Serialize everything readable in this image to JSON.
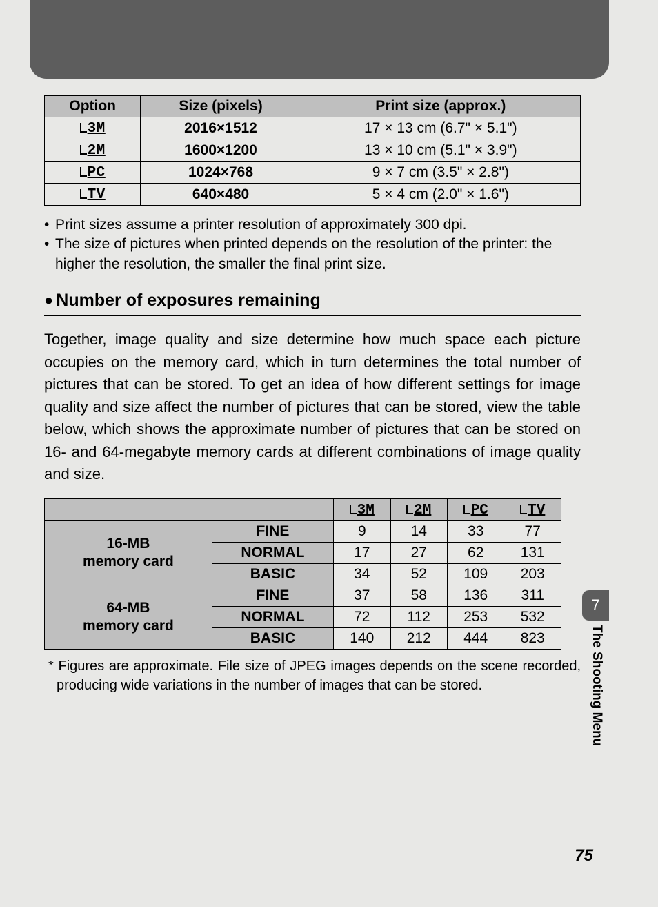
{
  "sizeTable": {
    "headers": {
      "option": "Option",
      "size": "Size (pixels)",
      "print": "Print size (approx.)"
    },
    "rows": [
      {
        "icon": "3M",
        "size": "2016×1512",
        "print": "17 × 13 cm (6.7\" × 5.1\")"
      },
      {
        "icon": "2M",
        "size": "1600×1200",
        "print": "13 × 10 cm (5.1\" × 3.9\")"
      },
      {
        "icon": "PC",
        "size": "1024×768",
        "print": "9 × 7 cm (3.5\" × 2.8\")"
      },
      {
        "icon": "TV",
        "size": "640×480",
        "print": "5 × 4 cm (2.0\" × 1.6\")"
      }
    ]
  },
  "notes": {
    "n1": "Print sizes assume a printer resolution of approximately 300 dpi.",
    "n2": "The size of pictures when printed depends on the resolution of the printer: the higher the resolution, the smaller the final print size."
  },
  "sectionTitle": "Number of exposures remaining",
  "bodyText": "Together, image quality and size determine how much space each picture occupies on the memory card, which in turn determines the total number of pictures that can be stored. To get an idea of how different settings for image quality and size affect the number of pictures that can be stored, view the table below, which shows the approximate number of pictures that can be stored on 16- and 64-megabyte memory cards at different combinations of image quality and size.",
  "expTable": {
    "cols": {
      "c1": "3M",
      "c2": "2M",
      "c3": "PC",
      "c4": "TV"
    },
    "card16": {
      "label1": "16-MB",
      "label2": "memory card"
    },
    "card64": {
      "label1": "64-MB",
      "label2": "memory card"
    },
    "quality": {
      "fine": "FINE",
      "normal": "NORMAL",
      "basic": "BASIC"
    },
    "rows": {
      "r16fine": {
        "v1": "9",
        "v2": "14",
        "v3": "33",
        "v4": "77"
      },
      "r16normal": {
        "v1": "17",
        "v2": "27",
        "v3": "62",
        "v4": "131"
      },
      "r16basic": {
        "v1": "34",
        "v2": "52",
        "v3": "109",
        "v4": "203"
      },
      "r64fine": {
        "v1": "37",
        "v2": "58",
        "v3": "136",
        "v4": "311"
      },
      "r64normal": {
        "v1": "72",
        "v2": "112",
        "v3": "253",
        "v4": "532"
      },
      "r64basic": {
        "v1": "140",
        "v2": "212",
        "v3": "444",
        "v4": "823"
      }
    }
  },
  "footnote": "* Figures are approximate. File size of JPEG images depends on the scene recorded, producing wide variations in the number of images that can be stored.",
  "sideTab": "7",
  "sideText": "The Shooting Menu",
  "pageNum": "75"
}
